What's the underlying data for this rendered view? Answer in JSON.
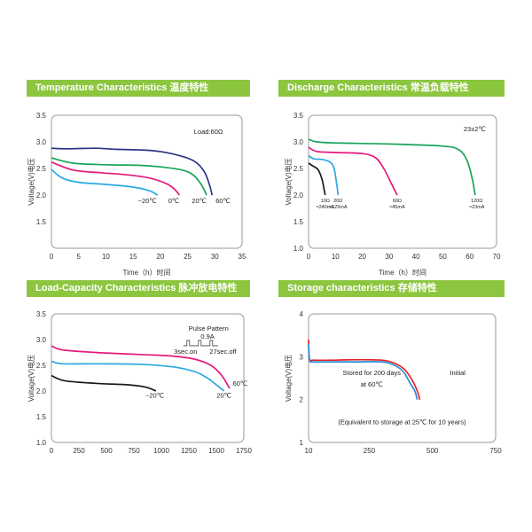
{
  "colors": {
    "banner": "#8cc63f",
    "navy": "#2b3587",
    "green": "#1aa35a",
    "magenta": "#e4197c",
    "cyan": "#2aa9e0",
    "black": "#1a1a1a",
    "red": "#e8202a",
    "blue": "#2a8fd6"
  },
  "chart_data": [
    {
      "id": "temp",
      "type": "line",
      "title": "Temperature Characteristics 温度特性",
      "xlabel": "Time（h）时间",
      "ylabel": "Voltage(V)电压",
      "xlim": [
        0,
        35
      ],
      "ylim": [
        1.0,
        3.5
      ],
      "xticks": [
        0,
        5,
        10,
        15,
        20,
        25,
        30,
        35
      ],
      "yticks": [
        1.5,
        2.0,
        2.5,
        3.0,
        3.5
      ],
      "annotation": "Load:60Ω",
      "series": [
        {
          "name": "60℃",
          "color": "navy",
          "x": [
            0,
            3,
            8,
            12,
            18,
            22,
            26,
            28,
            29,
            29.5
          ],
          "y": [
            2.88,
            2.87,
            2.88,
            2.86,
            2.84,
            2.78,
            2.65,
            2.45,
            2.2,
            2.0
          ]
        },
        {
          "name": "20℃",
          "color": "green",
          "x": [
            0,
            4,
            10,
            16,
            20,
            24,
            26,
            27.5,
            28.5
          ],
          "y": [
            2.7,
            2.6,
            2.57,
            2.56,
            2.53,
            2.47,
            2.38,
            2.2,
            2.0
          ]
        },
        {
          "name": "0℃",
          "color": "magenta",
          "x": [
            0,
            4,
            9,
            14,
            18,
            21,
            22.5,
            23.5
          ],
          "y": [
            2.62,
            2.47,
            2.42,
            2.38,
            2.32,
            2.22,
            2.12,
            2.0
          ]
        },
        {
          "name": "−20℃",
          "color": "cyan",
          "x": [
            0,
            2,
            5,
            10,
            15,
            18,
            19.5
          ],
          "y": [
            2.48,
            2.32,
            2.24,
            2.2,
            2.15,
            2.08,
            2.0
          ]
        }
      ]
    },
    {
      "id": "discharge",
      "type": "line",
      "title": "Discharge Characteristics 常温负载特性",
      "xlabel": "Time（h）时间",
      "ylabel": "Voltage(V)电压",
      "xlim": [
        0,
        70
      ],
      "ylim": [
        1.0,
        3.5
      ],
      "xticks": [
        0,
        10,
        20,
        30,
        40,
        50,
        60,
        70
      ],
      "yticks": [
        1.0,
        1.5,
        2.0,
        2.5,
        3.0,
        3.5
      ],
      "annotation": "23±2℃",
      "series": [
        {
          "name": "120Ω",
          "current": "≈23mA",
          "color": "green",
          "x": [
            0,
            3,
            10,
            30,
            50,
            56,
            59,
            61,
            62
          ],
          "y": [
            3.05,
            3.0,
            2.98,
            2.96,
            2.92,
            2.85,
            2.65,
            2.3,
            2.0
          ]
        },
        {
          "name": "60Ω",
          "current": "≈45mA",
          "color": "magenta",
          "x": [
            0,
            3,
            10,
            20,
            25,
            28,
            31,
            33
          ],
          "y": [
            2.9,
            2.82,
            2.8,
            2.78,
            2.7,
            2.5,
            2.2,
            2.0
          ]
        },
        {
          "name": "20Ω",
          "current": "≈125mA",
          "color": "cyan",
          "x": [
            0,
            2,
            5,
            8,
            9.5,
            10.5,
            11
          ],
          "y": [
            2.74,
            2.68,
            2.67,
            2.62,
            2.5,
            2.2,
            2.0
          ]
        },
        {
          "name": "10Ω",
          "current": "≈240mA",
          "color": "black",
          "x": [
            0,
            1.5,
            3.5,
            5,
            5.8,
            6.2
          ],
          "y": [
            2.6,
            2.55,
            2.48,
            2.3,
            2.1,
            2.0
          ]
        }
      ]
    },
    {
      "id": "pulse",
      "type": "line",
      "title": "Load-Capacity Characteristics 脉冲放电特性",
      "xlabel": "",
      "ylabel": "Voltage(V)电压",
      "xlim": [
        0,
        1750
      ],
      "ylim": [
        1.0,
        3.5
      ],
      "xticks": [
        0,
        250,
        500,
        750,
        1000,
        1250,
        1500,
        1750
      ],
      "yticks": [
        1.0,
        1.5,
        2.0,
        2.5,
        3.0,
        3.5
      ],
      "inset": {
        "title": "Pulse Pattern",
        "current": "0.9A",
        "on": "3sec.on",
        "off": "27sec.off"
      },
      "series": [
        {
          "name": "60℃",
          "color": "magenta",
          "x": [
            0,
            100,
            400,
            800,
            1100,
            1300,
            1450,
            1550,
            1620
          ],
          "y": [
            2.88,
            2.8,
            2.75,
            2.71,
            2.68,
            2.62,
            2.5,
            2.3,
            2.05
          ]
        },
        {
          "name": "20℃",
          "color": "cyan",
          "x": [
            0,
            100,
            400,
            800,
            1100,
            1300,
            1420,
            1500,
            1570
          ],
          "y": [
            2.58,
            2.53,
            2.53,
            2.52,
            2.47,
            2.38,
            2.25,
            2.12,
            2.0
          ]
        },
        {
          "name": "−20℃",
          "color": "black",
          "x": [
            0,
            120,
            400,
            700,
            850,
            920,
            950
          ],
          "y": [
            2.3,
            2.2,
            2.15,
            2.12,
            2.08,
            2.03,
            2.0
          ]
        }
      ]
    },
    {
      "id": "storage",
      "type": "line",
      "title": "Storage characteristics 存储特性",
      "xlabel": "",
      "ylabel": "Voltage(V)电压",
      "xlim": [
        10,
        750
      ],
      "ylim": [
        1,
        4
      ],
      "xticks": [
        10,
        250,
        500,
        750
      ],
      "yticks": [
        1,
        2,
        3,
        4
      ],
      "annotations": [
        "Stored for 200 days",
        "at 60℃",
        "Initial",
        "(Equivalent to storage at 25℃ for 10 years)"
      ],
      "series": [
        {
          "name": "Initial",
          "color": "red",
          "x": [
            10,
            14,
            30,
            100,
            200,
            300,
            350,
            390,
            420,
            440,
            450
          ],
          "y": [
            3.4,
            2.95,
            2.92,
            2.92,
            2.93,
            2.92,
            2.85,
            2.7,
            2.45,
            2.2,
            2.0
          ]
        },
        {
          "name": "Stored for 200 days at 60℃",
          "color": "blue",
          "x": [
            10,
            14,
            30,
            100,
            200,
            300,
            350,
            385,
            410,
            430,
            440
          ],
          "y": [
            3.3,
            2.92,
            2.88,
            2.88,
            2.88,
            2.88,
            2.8,
            2.65,
            2.4,
            2.2,
            2.0
          ]
        }
      ]
    }
  ]
}
